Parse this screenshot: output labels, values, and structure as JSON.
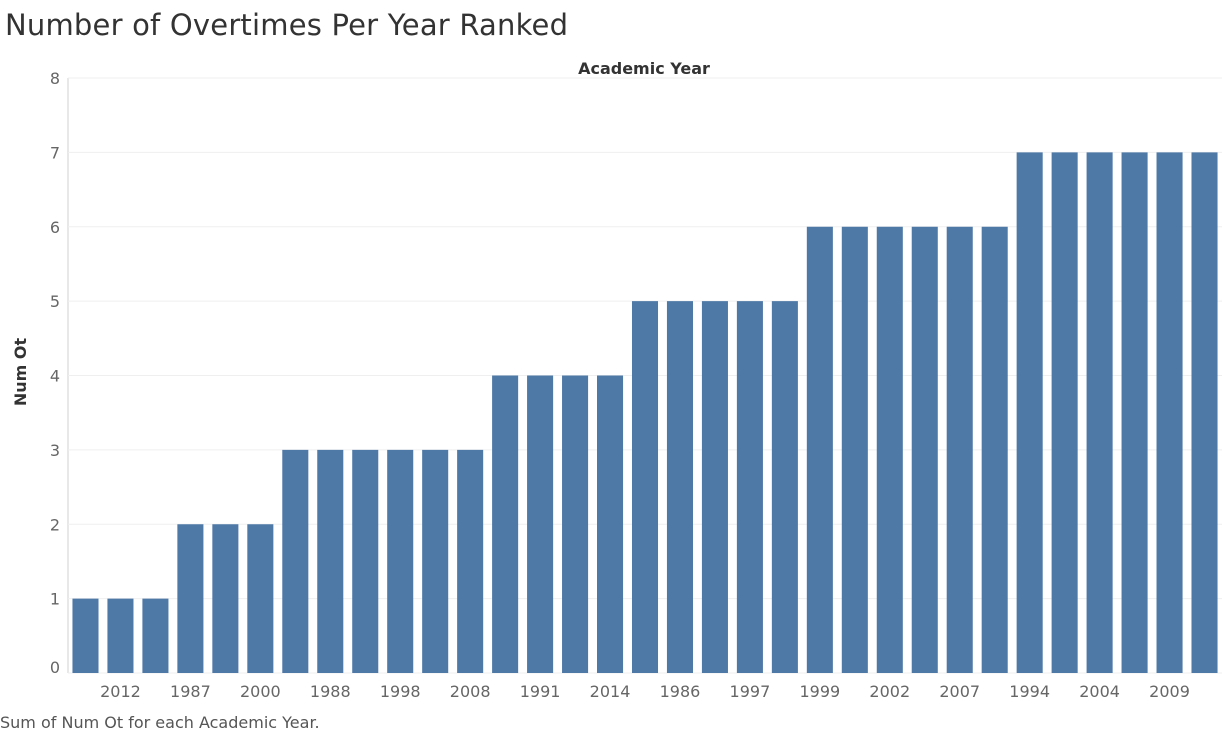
{
  "title": "Number of Overtimes Per Year Ranked",
  "caption": "Sum of Num Ot for each Academic Year.",
  "colors": {
    "bar": "#4e79a7",
    "grid": "#efefef",
    "axis": "#d0d0d0"
  },
  "chart_data": {
    "type": "bar",
    "xlabel": "Academic Year",
    "ylabel": "Num Ot",
    "ylim": [
      0,
      8
    ],
    "yticks": [
      0,
      1,
      2,
      3,
      4,
      5,
      6,
      7,
      8
    ],
    "grid": true,
    "bar_count": 33,
    "visible_category_labels": [
      "2012",
      "1987",
      "2000",
      "1988",
      "1998",
      "2008",
      "1991",
      "2014",
      "1986",
      "1997",
      "1999",
      "2002",
      "2007",
      "1994",
      "2004",
      "2009"
    ],
    "values": [
      1,
      1,
      1,
      2,
      2,
      2,
      3,
      3,
      3,
      3,
      3,
      3,
      4,
      4,
      4,
      4,
      5,
      5,
      5,
      5,
      5,
      6,
      6,
      6,
      6,
      6,
      6,
      7,
      7,
      7,
      7,
      7,
      7
    ]
  }
}
